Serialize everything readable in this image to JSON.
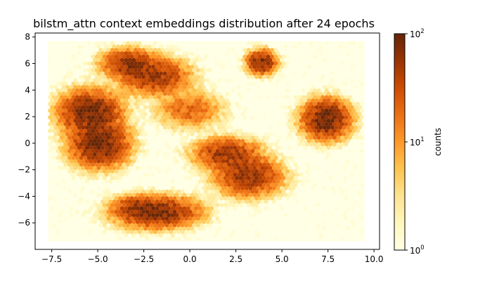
{
  "chart_data": {
    "type": "hexbin",
    "title": "bilstm_attn context embeddings distribution after 24 epochs",
    "xlabel": "",
    "ylabel": "",
    "xlim": [
      -8.4,
      10.3
    ],
    "ylim": [
      -8.0,
      8.3
    ],
    "xticks": [
      -7.5,
      -5.0,
      -2.5,
      0.0,
      2.5,
      5.0,
      7.5,
      10.0
    ],
    "xtick_labels": [
      "−7.5",
      "−5.0",
      "−2.5",
      "0.0",
      "2.5",
      "5.0",
      "7.5",
      "10.0"
    ],
    "yticks": [
      -6,
      -4,
      -2,
      0,
      2,
      4,
      6,
      8
    ],
    "ytick_labels": [
      "−6",
      "−4",
      "−2",
      "0",
      "2",
      "4",
      "6",
      "8"
    ],
    "data_extent": {
      "x": [
        -7.7,
        9.5
      ],
      "y": [
        -7.4,
        7.7
      ]
    },
    "colormap": "YlOrBr",
    "colormap_stops": [
      "#ffffe5",
      "#fff7bc",
      "#fee391",
      "#fec44f",
      "#fe9929",
      "#ec7014",
      "#cc4c02",
      "#993404",
      "#662506"
    ],
    "color_scale": "log",
    "color_range": [
      1,
      100
    ],
    "grid": false,
    "colorbar": {
      "label": "counts",
      "ticks": [
        {
          "base": "10",
          "exp": "0",
          "value": 1
        },
        {
          "base": "10",
          "exp": "1",
          "value": 10
        },
        {
          "base": "10",
          "exp": "2",
          "value": 100
        }
      ]
    },
    "clusters": [
      {
        "x": -5.4,
        "y": 2.3,
        "sx": 0.85,
        "sy": 0.85,
        "peak": 85
      },
      {
        "x": -4.9,
        "y": -0.1,
        "sx": 0.8,
        "sy": 0.85,
        "peak": 90
      },
      {
        "x": -3.3,
        "y": 6.0,
        "sx": 0.75,
        "sy": 0.55,
        "peak": 60
      },
      {
        "x": -1.9,
        "y": 5.0,
        "sx": 0.95,
        "sy": 0.7,
        "peak": 55
      },
      {
        "x": 0.0,
        "y": 2.5,
        "sx": 0.9,
        "sy": 0.7,
        "peak": 22
      },
      {
        "x": 3.9,
        "y": 6.1,
        "sx": 0.4,
        "sy": 0.45,
        "peak": 80
      },
      {
        "x": 7.4,
        "y": 1.8,
        "sx": 0.65,
        "sy": 0.75,
        "peak": 100
      },
      {
        "x": 2.0,
        "y": -0.8,
        "sx": 0.9,
        "sy": 0.6,
        "peak": 55
      },
      {
        "x": 3.2,
        "y": -2.5,
        "sx": 0.9,
        "sy": 0.75,
        "peak": 60
      },
      {
        "x": -1.8,
        "y": -5.2,
        "sx": 1.15,
        "sy": 0.6,
        "peak": 80
      },
      {
        "x": -3.0,
        "y": -4.8,
        "sx": 0.6,
        "sy": 0.4,
        "peak": 30
      }
    ]
  }
}
